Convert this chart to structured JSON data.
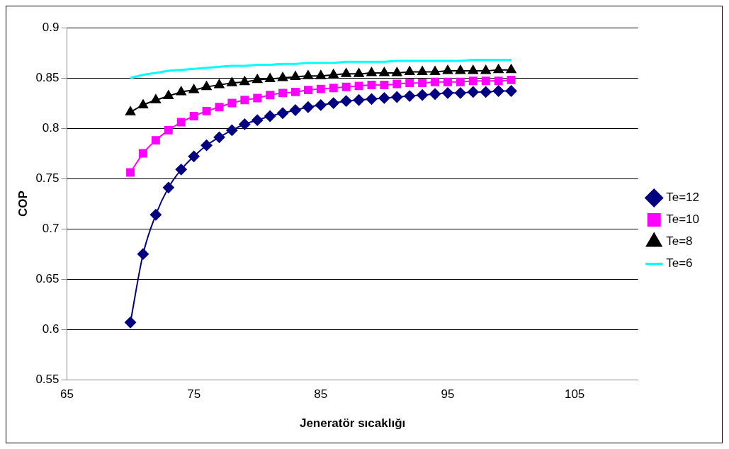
{
  "chart_data": {
    "type": "line",
    "xlabel": "Jeneratör sıcaklığı",
    "ylabel": "COP",
    "xlim": [
      65,
      110
    ],
    "xticks": [
      65,
      75,
      85,
      95,
      105
    ],
    "ylim": [
      0.55,
      0.9
    ],
    "yticks": [
      0.55,
      0.6,
      0.65,
      0.7,
      0.75,
      0.8,
      0.85,
      0.9
    ],
    "grid": "y",
    "legend": "right",
    "x": [
      70,
      71,
      72,
      73,
      74,
      75,
      76,
      77,
      78,
      79,
      80,
      81,
      82,
      83,
      84,
      85,
      86,
      87,
      88,
      89,
      90,
      91,
      92,
      93,
      94,
      95,
      96,
      97,
      98,
      99,
      100
    ],
    "series": [
      {
        "name": "Te=12",
        "color": "#000080",
        "marker": "diamond",
        "values": [
          0.607,
          0.675,
          0.714,
          0.741,
          0.759,
          0.772,
          0.783,
          0.791,
          0.798,
          0.804,
          0.808,
          0.812,
          0.815,
          0.818,
          0.821,
          0.823,
          0.825,
          0.827,
          0.828,
          0.829,
          0.83,
          0.831,
          0.832,
          0.833,
          0.834,
          0.835,
          0.835,
          0.836,
          0.836,
          0.837,
          0.837
        ]
      },
      {
        "name": "Te=10",
        "color": "#ff00ff",
        "marker": "square",
        "values": [
          0.756,
          0.775,
          0.788,
          0.798,
          0.806,
          0.812,
          0.817,
          0.821,
          0.825,
          0.828,
          0.83,
          0.833,
          0.835,
          0.836,
          0.838,
          0.839,
          0.84,
          0.841,
          0.842,
          0.843,
          0.843,
          0.844,
          0.845,
          0.845,
          0.846,
          0.846,
          0.846,
          0.847,
          0.847,
          0.847,
          0.848
        ]
      },
      {
        "name": "Te=8",
        "color": "#000000",
        "marker": "triangle",
        "values": [
          0.816,
          0.823,
          0.828,
          0.832,
          0.836,
          0.838,
          0.841,
          0.843,
          0.845,
          0.846,
          0.848,
          0.849,
          0.85,
          0.851,
          0.852,
          0.852,
          0.853,
          0.854,
          0.854,
          0.855,
          0.855,
          0.855,
          0.856,
          0.856,
          0.856,
          0.857,
          0.857,
          0.857,
          0.857,
          0.858,
          0.858
        ]
      },
      {
        "name": "Te=6",
        "color": "#00ffff",
        "marker": "none",
        "values": [
          0.85,
          0.853,
          0.855,
          0.857,
          0.858,
          0.859,
          0.86,
          0.861,
          0.862,
          0.862,
          0.863,
          0.863,
          0.864,
          0.864,
          0.865,
          0.865,
          0.865,
          0.866,
          0.866,
          0.866,
          0.866,
          0.867,
          0.867,
          0.867,
          0.867,
          0.867,
          0.867,
          0.868,
          0.868,
          0.868,
          0.868
        ]
      }
    ]
  }
}
